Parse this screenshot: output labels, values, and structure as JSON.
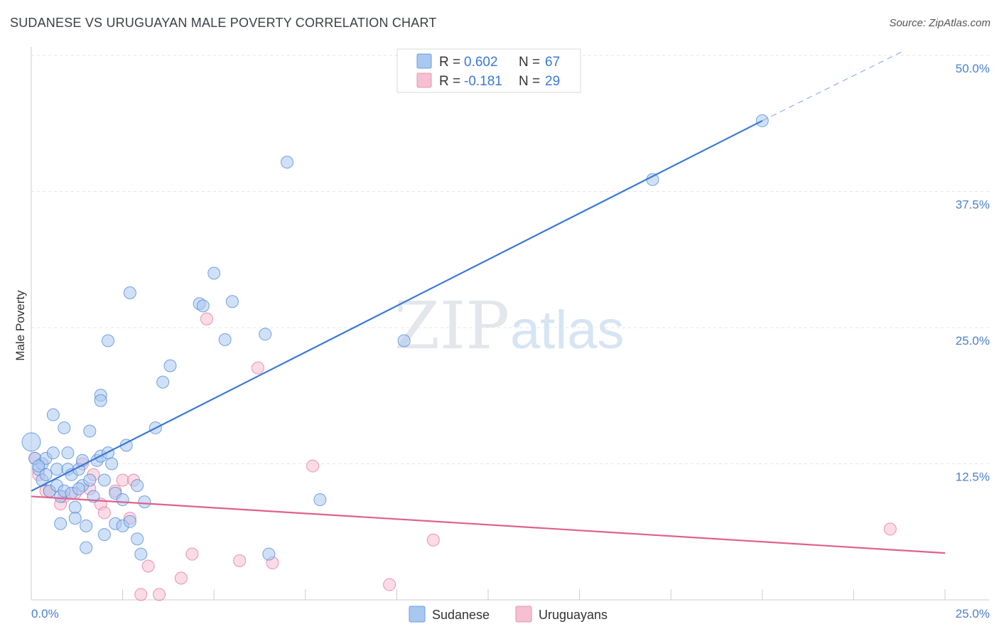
{
  "title": "SUDANESE VS URUGUAYAN MALE POVERTY CORRELATION CHART",
  "source": "Source: ZipAtlas.com",
  "watermark": {
    "zip": "ZIP",
    "atlas": "atlas"
  },
  "colors": {
    "sudanese": "#4a86d8",
    "uruguayans": "#e8709a",
    "sudanese_fill": "#a9c8f0",
    "uruguayans_fill": "#f6bfd2"
  },
  "legend": {
    "items": [
      {
        "r_label": "R = ",
        "r_value": "0.602",
        "n_label": "N = ",
        "n_value": "67"
      },
      {
        "r_label": "R = ",
        "r_value": "-0.181",
        "n_label": "N = ",
        "n_value": "29"
      }
    ]
  },
  "bottom_legend": [
    "Sudanese",
    "Uruguayans"
  ],
  "chart_data": {
    "type": "scatter",
    "title": "SUDANESE VS URUGUAYAN MALE POVERTY CORRELATION CHART",
    "xlabel": "",
    "ylabel": "Male Poverty",
    "xlim": [
      0,
      25
    ],
    "ylim": [
      0,
      50
    ],
    "x_ticks": [
      "0.0%",
      "25.0%"
    ],
    "y_ticks": [
      {
        "value": 12.5,
        "label": "12.5%"
      },
      {
        "value": 25,
        "label": "25.0%"
      },
      {
        "value": 37.5,
        "label": "37.5%"
      },
      {
        "value": 50,
        "label": "50.0%"
      }
    ],
    "grid": true,
    "legend_placement": "top-center",
    "series": [
      {
        "name": "Sudanese",
        "trend": {
          "x0": 0,
          "y0": 10.0,
          "x1": 20,
          "y1": 44.0,
          "dash_to_x": 23.8,
          "dash_to_y": 50.3
        },
        "points": [
          [
            0.0,
            14.5
          ],
          [
            0.1,
            13.0
          ],
          [
            0.2,
            12.0
          ],
          [
            0.3,
            11.0
          ],
          [
            0.3,
            12.5
          ],
          [
            0.4,
            11.5
          ],
          [
            0.4,
            13.0
          ],
          [
            0.5,
            10.0
          ],
          [
            0.6,
            13.5
          ],
          [
            0.6,
            17.0
          ],
          [
            0.7,
            10.5
          ],
          [
            0.7,
            12.0
          ],
          [
            0.8,
            9.5
          ],
          [
            0.8,
            7.0
          ],
          [
            0.9,
            10.0
          ],
          [
            0.9,
            15.8
          ],
          [
            1.0,
            12.0
          ],
          [
            1.0,
            13.5
          ],
          [
            1.1,
            11.5
          ],
          [
            1.1,
            9.8
          ],
          [
            1.2,
            8.5
          ],
          [
            1.2,
            7.5
          ],
          [
            1.3,
            12.0
          ],
          [
            1.4,
            10.5
          ],
          [
            1.4,
            12.8
          ],
          [
            1.5,
            4.8
          ],
          [
            1.5,
            6.8
          ],
          [
            1.6,
            15.5
          ],
          [
            1.6,
            11.0
          ],
          [
            1.7,
            9.5
          ],
          [
            1.8,
            12.8
          ],
          [
            1.9,
            18.8
          ],
          [
            1.9,
            18.3
          ],
          [
            1.9,
            13.2
          ],
          [
            2.0,
            6.0
          ],
          [
            2.0,
            11.0
          ],
          [
            2.1,
            23.8
          ],
          [
            2.1,
            13.5
          ],
          [
            2.2,
            12.5
          ],
          [
            2.3,
            9.8
          ],
          [
            2.3,
            7.0
          ],
          [
            2.5,
            9.2
          ],
          [
            2.5,
            6.8
          ],
          [
            2.6,
            14.2
          ],
          [
            2.7,
            28.2
          ],
          [
            2.7,
            7.2
          ],
          [
            2.9,
            10.5
          ],
          [
            2.9,
            5.6
          ],
          [
            3.0,
            4.2
          ],
          [
            3.1,
            9.0
          ],
          [
            3.4,
            15.8
          ],
          [
            3.6,
            20.0
          ],
          [
            3.8,
            21.5
          ],
          [
            4.6,
            27.2
          ],
          [
            4.7,
            27.0
          ],
          [
            5.0,
            30.0
          ],
          [
            5.3,
            23.9
          ],
          [
            5.5,
            27.4
          ],
          [
            6.4,
            24.4
          ],
          [
            6.5,
            4.2
          ],
          [
            7.0,
            40.2
          ],
          [
            7.9,
            9.2
          ],
          [
            10.2,
            23.8
          ],
          [
            20.0,
            44.0
          ],
          [
            17.0,
            38.6
          ],
          [
            0.2,
            12.3
          ],
          [
            1.3,
            10.2
          ]
        ]
      },
      {
        "name": "Uruguayans",
        "trend": {
          "x0": 0,
          "y0": 9.5,
          "x1": 25,
          "y1": 4.3
        },
        "points": [
          [
            0.1,
            13.0
          ],
          [
            0.2,
            11.5
          ],
          [
            0.4,
            10.0
          ],
          [
            0.5,
            10.0
          ],
          [
            0.8,
            8.8
          ],
          [
            0.9,
            9.5
          ],
          [
            1.2,
            9.8
          ],
          [
            1.4,
            12.5
          ],
          [
            1.6,
            10.2
          ],
          [
            1.7,
            11.5
          ],
          [
            1.9,
            8.8
          ],
          [
            2.0,
            8.0
          ],
          [
            2.3,
            10.0
          ],
          [
            2.5,
            11.0
          ],
          [
            2.7,
            7.5
          ],
          [
            2.8,
            11.0
          ],
          [
            3.0,
            0.5
          ],
          [
            3.2,
            3.1
          ],
          [
            3.5,
            0.5
          ],
          [
            4.1,
            2.0
          ],
          [
            4.4,
            4.2
          ],
          [
            4.8,
            25.8
          ],
          [
            5.7,
            3.6
          ],
          [
            6.2,
            21.3
          ],
          [
            6.6,
            3.4
          ],
          [
            7.7,
            12.3
          ],
          [
            9.8,
            1.4
          ],
          [
            11.0,
            5.5
          ],
          [
            23.5,
            6.5
          ]
        ]
      }
    ]
  }
}
